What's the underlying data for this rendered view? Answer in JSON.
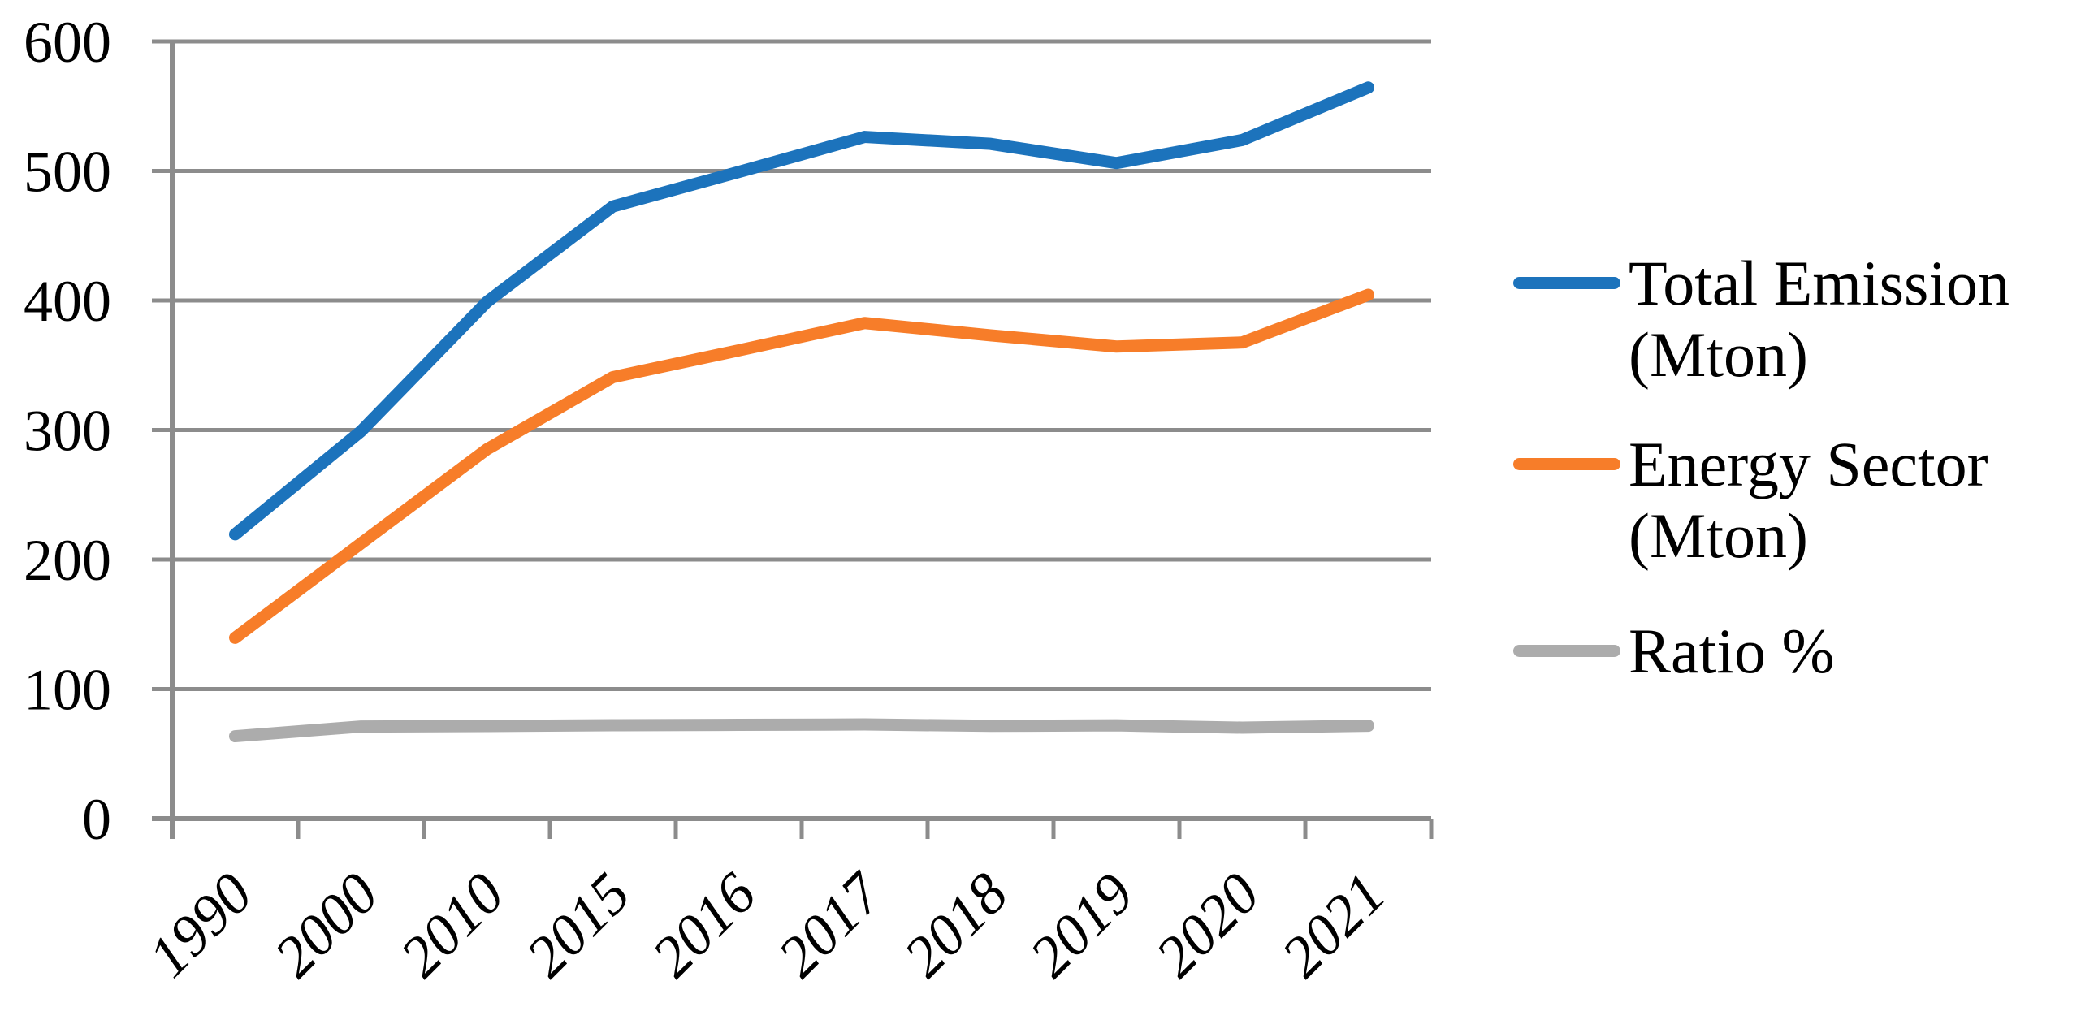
{
  "chart_data": {
    "type": "line",
    "title": "",
    "xlabel": "",
    "ylabel": "",
    "categories": [
      "1990",
      "2000",
      "2010",
      "2015",
      "2016",
      "2017",
      "2018",
      "2019",
      "2020",
      "2021"
    ],
    "series": [
      {
        "name": "Total Emission (Mton)",
        "legend_lines": [
          "Total Emission",
          "(Mton)"
        ],
        "color": "#1C73BC",
        "values": [
          219.5,
          299.1,
          398.9,
          472.6,
          499.2,
          526.3,
          520.9,
          506.1,
          523.9,
          564.4
        ]
      },
      {
        "name": "Energy Sector (Mton)",
        "legend_lines": [
          "Energy Sector",
          "(Mton)"
        ],
        "color": "#F77D29",
        "values": [
          139.6,
          212.5,
          285.1,
          340.8,
          361.5,
          382.6,
          373.1,
          364.4,
          367.6,
          404.4
        ]
      },
      {
        "name": "Ratio %",
        "legend_lines": [
          "Ratio %"
        ],
        "color": "#ACACAC",
        "values": [
          63.6,
          71.1,
          71.5,
          72.1,
          72.4,
          72.7,
          71.6,
          72.0,
          70.2,
          71.7
        ]
      }
    ],
    "ylim": [
      0,
      600
    ],
    "y_ticks": [
      0,
      100,
      200,
      300,
      400,
      500,
      600
    ],
    "grid": "horizontal",
    "gridline_color": "#8C8C8C",
    "axis_color": "#8C8C8C",
    "legend_position": "right",
    "x_label_rotation_deg": -45
  }
}
